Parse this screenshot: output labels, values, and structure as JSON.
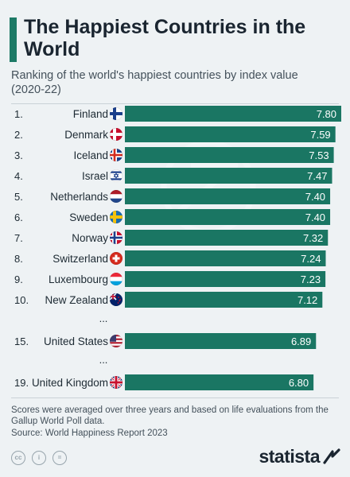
{
  "title": "The Happiest Countries in the World",
  "subtitle": "Ranking of the world's happiest countries by index value (2020-22)",
  "footnote": "Scores were averaged over three years and based on life evaluations from the Gallup World Poll data.",
  "source": "Source: World Happiness Report 2023",
  "brand": "statista",
  "license_icons": [
    "cc",
    "i",
    "="
  ],
  "colors": {
    "bar": "#1a7663",
    "accent": "#1d7a66",
    "background": "#eef2f4"
  },
  "chart_data": {
    "type": "bar",
    "orientation": "horizontal",
    "rows": [
      {
        "rank": "1.",
        "country": "Finland",
        "value": 7.8,
        "value_label": "7.80",
        "flag": "finland-flag-icon"
      },
      {
        "rank": "2.",
        "country": "Denmark",
        "value": 7.59,
        "value_label": "7.59",
        "flag": "denmark-flag-icon"
      },
      {
        "rank": "3.",
        "country": "Iceland",
        "value": 7.53,
        "value_label": "7.53",
        "flag": "iceland-flag-icon"
      },
      {
        "rank": "4.",
        "country": "Israel",
        "value": 7.47,
        "value_label": "7.47",
        "flag": "israel-flag-icon"
      },
      {
        "rank": "5.",
        "country": "Netherlands",
        "value": 7.4,
        "value_label": "7.40",
        "flag": "netherlands-flag-icon"
      },
      {
        "rank": "6.",
        "country": "Sweden",
        "value": 7.4,
        "value_label": "7.40",
        "flag": "sweden-flag-icon"
      },
      {
        "rank": "7.",
        "country": "Norway",
        "value": 7.32,
        "value_label": "7.32",
        "flag": "norway-flag-icon"
      },
      {
        "rank": "8.",
        "country": "Switzerland",
        "value": 7.24,
        "value_label": "7.24",
        "flag": "switzerland-flag-icon"
      },
      {
        "rank": "9.",
        "country": "Luxembourg",
        "value": 7.23,
        "value_label": "7.23",
        "flag": "luxembourg-flag-icon"
      },
      {
        "rank": "10.",
        "country": "New Zealand",
        "value": 7.12,
        "value_label": "7.12",
        "flag": "new-zealand-flag-icon"
      },
      {
        "ellipsis": "..."
      },
      {
        "rank": "15.",
        "country": "United States",
        "value": 6.89,
        "value_label": "6.89",
        "flag": "united-states-flag-icon"
      },
      {
        "ellipsis": "..."
      },
      {
        "rank": "19.",
        "country": "United Kingdom",
        "value": 6.8,
        "value_label": "6.80",
        "flag": "united-kingdom-flag-icon"
      }
    ]
  }
}
